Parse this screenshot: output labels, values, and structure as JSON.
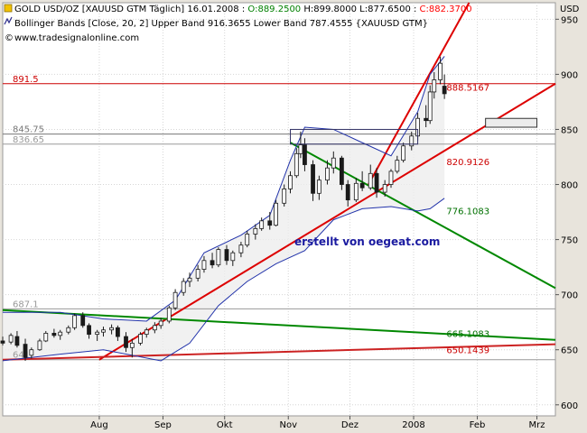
{
  "header": {
    "line1_prefix": "GOLD USD/OZ [XAUUSD GTM",
    "line1_period": "Täglich",
    "line1_date": "16.01.2008",
    "line1_open": "O:889.2500",
    "line1_high": "H:899.8000",
    "line1_low": "L:877.6500",
    "line1_close": "C:882.3700",
    "line2": "Bollinger Bands [Close, 20, 2] Upper Band 916.3655 Lower Band 787.4555 {XAUUSD GTM}",
    "line3": "www.tradesignalonline.com",
    "open_color": "#008000",
    "close_color": "#ff0000"
  },
  "watermark": "erstellt von oegeat.com",
  "chart_data": {
    "type": "candlestick",
    "currency_label": "USD",
    "ylim": [
      590,
      965
    ],
    "yticks": [
      600,
      650,
      700,
      750,
      800,
      850,
      900,
      950
    ],
    "xtick_labels": [
      "Aug",
      "Sep",
      "Okt",
      "Nov",
      "Dez",
      "2008",
      "Feb",
      "Mrz"
    ],
    "grid": true,
    "levels": [
      {
        "label": "891.5",
        "value": 891.5,
        "color": "#cc0000"
      },
      {
        "label": "845.75",
        "value": 845.75,
        "color": "#777777"
      },
      {
        "label": "836.65",
        "value": 836.65,
        "color": "#999999"
      },
      {
        "label": "687.1",
        "value": 687.1,
        "color": "#999999"
      },
      {
        "label": "641",
        "value": 641,
        "color": "#999999"
      }
    ],
    "annotations": [
      {
        "label": "888.5167",
        "color": "#cc0000"
      },
      {
        "label": "820.9126",
        "color": "#cc0000"
      },
      {
        "label": "776.1083",
        "color": "#007000"
      },
      {
        "label": "665.1083",
        "color": "#007000"
      },
      {
        "label": "650.1439",
        "color": "#cc0000"
      }
    ],
    "trendlines": [
      {
        "kind": "support",
        "color": "#dd0000",
        "from": {
          "x": "2007-08-01",
          "y": 641
        },
        "to": {
          "x": "2008-03-10",
          "y": 891.5
        }
      },
      {
        "kind": "support-steep",
        "color": "#dd0000",
        "from": {
          "x": "2007-12-10",
          "y": 800
        },
        "to": {
          "x": "2008-01-28",
          "y": 965
        }
      },
      {
        "kind": "channel",
        "color": "#cc2222",
        "from": {
          "x": "2007-06-15",
          "y": 641
        },
        "to": {
          "x": "2008-03-10",
          "y": 655
        }
      },
      {
        "kind": "resistance",
        "color": "#008800",
        "from": {
          "x": "2007-06-15",
          "y": 686
        },
        "to": {
          "x": "2008-03-10",
          "y": 659
        }
      },
      {
        "kind": "resistance",
        "color": "#008800",
        "from": {
          "x": "2007-11-02",
          "y": 838
        },
        "to": {
          "x": "2008-03-10",
          "y": 706
        }
      }
    ],
    "candles": [
      {
        "d": "2007-06-15",
        "o": 658,
        "h": 662,
        "l": 654,
        "c": 656
      },
      {
        "d": "2007-06-19",
        "o": 657,
        "h": 665,
        "l": 655,
        "c": 663
      },
      {
        "d": "2007-06-22",
        "o": 662,
        "h": 667,
        "l": 652,
        "c": 654
      },
      {
        "d": "2007-06-26",
        "o": 655,
        "h": 660,
        "l": 640,
        "c": 643
      },
      {
        "d": "2007-06-29",
        "o": 645,
        "h": 652,
        "l": 642,
        "c": 650
      },
      {
        "d": "2007-07-03",
        "o": 650,
        "h": 660,
        "l": 649,
        "c": 658
      },
      {
        "d": "2007-07-06",
        "o": 658,
        "h": 667,
        "l": 657,
        "c": 665
      },
      {
        "d": "2007-07-10",
        "o": 665,
        "h": 669,
        "l": 661,
        "c": 663
      },
      {
        "d": "2007-07-13",
        "o": 663,
        "h": 668,
        "l": 659,
        "c": 666
      },
      {
        "d": "2007-07-17",
        "o": 666,
        "h": 672,
        "l": 664,
        "c": 670
      },
      {
        "d": "2007-07-20",
        "o": 670,
        "h": 683,
        "l": 668,
        "c": 681
      },
      {
        "d": "2007-07-24",
        "o": 681,
        "h": 684,
        "l": 670,
        "c": 672
      },
      {
        "d": "2007-07-27",
        "o": 672,
        "h": 674,
        "l": 660,
        "c": 664
      },
      {
        "d": "2007-07-31",
        "o": 664,
        "h": 668,
        "l": 658,
        "c": 666
      },
      {
        "d": "2007-08-03",
        "o": 666,
        "h": 671,
        "l": 662,
        "c": 668
      },
      {
        "d": "2007-08-07",
        "o": 668,
        "h": 673,
        "l": 664,
        "c": 670
      },
      {
        "d": "2007-08-10",
        "o": 670,
        "h": 672,
        "l": 658,
        "c": 662
      },
      {
        "d": "2007-08-14",
        "o": 662,
        "h": 666,
        "l": 648,
        "c": 652
      },
      {
        "d": "2007-08-17",
        "o": 652,
        "h": 660,
        "l": 643,
        "c": 656
      },
      {
        "d": "2007-08-21",
        "o": 656,
        "h": 666,
        "l": 654,
        "c": 664
      },
      {
        "d": "2007-08-24",
        "o": 664,
        "h": 670,
        "l": 661,
        "c": 668
      },
      {
        "d": "2007-08-28",
        "o": 668,
        "h": 675,
        "l": 665,
        "c": 672
      },
      {
        "d": "2007-08-31",
        "o": 672,
        "h": 679,
        "l": 669,
        "c": 676
      },
      {
        "d": "2007-09-04",
        "o": 676,
        "h": 690,
        "l": 674,
        "c": 688
      },
      {
        "d": "2007-09-07",
        "o": 688,
        "h": 705,
        "l": 686,
        "c": 702
      },
      {
        "d": "2007-09-11",
        "o": 702,
        "h": 715,
        "l": 699,
        "c": 712
      },
      {
        "d": "2007-09-14",
        "o": 712,
        "h": 720,
        "l": 707,
        "c": 715
      },
      {
        "d": "2007-09-18",
        "o": 715,
        "h": 727,
        "l": 712,
        "c": 723
      },
      {
        "d": "2007-09-21",
        "o": 723,
        "h": 735,
        "l": 720,
        "c": 731
      },
      {
        "d": "2007-09-25",
        "o": 731,
        "h": 738,
        "l": 724,
        "c": 727
      },
      {
        "d": "2007-09-28",
        "o": 727,
        "h": 743,
        "l": 725,
        "c": 741
      },
      {
        "d": "2007-10-02",
        "o": 741,
        "h": 745,
        "l": 727,
        "c": 731
      },
      {
        "d": "2007-10-05",
        "o": 731,
        "h": 740,
        "l": 726,
        "c": 738
      },
      {
        "d": "2007-10-09",
        "o": 738,
        "h": 748,
        "l": 734,
        "c": 745
      },
      {
        "d": "2007-10-12",
        "o": 745,
        "h": 758,
        "l": 743,
        "c": 755
      },
      {
        "d": "2007-10-16",
        "o": 755,
        "h": 764,
        "l": 750,
        "c": 760
      },
      {
        "d": "2007-10-19",
        "o": 760,
        "h": 770,
        "l": 758,
        "c": 767
      },
      {
        "d": "2007-10-23",
        "o": 767,
        "h": 775,
        "l": 759,
        "c": 763
      },
      {
        "d": "2007-10-26",
        "o": 763,
        "h": 786,
        "l": 762,
        "c": 783
      },
      {
        "d": "2007-10-30",
        "o": 783,
        "h": 800,
        "l": 780,
        "c": 796
      },
      {
        "d": "2007-11-02",
        "o": 796,
        "h": 812,
        "l": 792,
        "c": 808
      },
      {
        "d": "2007-11-05",
        "o": 808,
        "h": 833,
        "l": 806,
        "c": 828
      },
      {
        "d": "2007-11-07",
        "o": 828,
        "h": 848,
        "l": 824,
        "c": 836
      },
      {
        "d": "2007-11-09",
        "o": 836,
        "h": 842,
        "l": 812,
        "c": 818
      },
      {
        "d": "2007-11-13",
        "o": 818,
        "h": 822,
        "l": 785,
        "c": 792
      },
      {
        "d": "2007-11-16",
        "o": 792,
        "h": 808,
        "l": 786,
        "c": 804
      },
      {
        "d": "2007-11-20",
        "o": 804,
        "h": 822,
        "l": 800,
        "c": 815
      },
      {
        "d": "2007-11-23",
        "o": 815,
        "h": 830,
        "l": 810,
        "c": 824
      },
      {
        "d": "2007-11-27",
        "o": 824,
        "h": 826,
        "l": 795,
        "c": 800
      },
      {
        "d": "2007-11-30",
        "o": 800,
        "h": 804,
        "l": 780,
        "c": 786
      },
      {
        "d": "2007-12-04",
        "o": 786,
        "h": 806,
        "l": 784,
        "c": 801
      },
      {
        "d": "2007-12-07",
        "o": 801,
        "h": 812,
        "l": 794,
        "c": 797
      },
      {
        "d": "2007-12-11",
        "o": 797,
        "h": 818,
        "l": 795,
        "c": 810
      },
      {
        "d": "2007-12-14",
        "o": 810,
        "h": 815,
        "l": 788,
        "c": 793
      },
      {
        "d": "2007-12-18",
        "o": 793,
        "h": 804,
        "l": 789,
        "c": 800
      },
      {
        "d": "2007-12-21",
        "o": 800,
        "h": 814,
        "l": 797,
        "c": 812
      },
      {
        "d": "2007-12-24",
        "o": 812,
        "h": 826,
        "l": 810,
        "c": 822
      },
      {
        "d": "2007-12-27",
        "o": 822,
        "h": 838,
        "l": 820,
        "c": 835
      },
      {
        "d": "2007-12-31",
        "o": 835,
        "h": 848,
        "l": 831,
        "c": 844
      },
      {
        "d": "2008-01-03",
        "o": 844,
        "h": 865,
        "l": 840,
        "c": 860
      },
      {
        "d": "2008-01-07",
        "o": 860,
        "h": 872,
        "l": 852,
        "c": 858
      },
      {
        "d": "2008-01-09",
        "o": 858,
        "h": 890,
        "l": 855,
        "c": 884
      },
      {
        "d": "2008-01-11",
        "o": 884,
        "h": 902,
        "l": 878,
        "c": 895
      },
      {
        "d": "2008-01-14",
        "o": 895,
        "h": 916,
        "l": 891,
        "c": 910
      },
      {
        "d": "2008-01-16",
        "o": 889.25,
        "h": 899.8,
        "l": 877.65,
        "c": 882.37
      }
    ],
    "bollinger": {
      "upper": [
        {
          "d": "2007-06-15",
          "v": 684
        },
        {
          "d": "2007-07-13",
          "v": 684
        },
        {
          "d": "2007-08-03",
          "v": 678
        },
        {
          "d": "2007-08-24",
          "v": 676
        },
        {
          "d": "2007-09-07",
          "v": 695
        },
        {
          "d": "2007-09-21",
          "v": 738
        },
        {
          "d": "2007-10-09",
          "v": 754
        },
        {
          "d": "2007-10-23",
          "v": 772
        },
        {
          "d": "2007-11-02",
          "v": 822
        },
        {
          "d": "2007-11-09",
          "v": 852
        },
        {
          "d": "2007-11-23",
          "v": 850
        },
        {
          "d": "2007-12-07",
          "v": 838
        },
        {
          "d": "2007-12-21",
          "v": 826
        },
        {
          "d": "2008-01-03",
          "v": 866
        },
        {
          "d": "2008-01-09",
          "v": 900
        },
        {
          "d": "2008-01-16",
          "v": 916.37
        }
      ],
      "lower": [
        {
          "d": "2007-06-15",
          "v": 640
        },
        {
          "d": "2007-07-13",
          "v": 646
        },
        {
          "d": "2007-08-03",
          "v": 650
        },
        {
          "d": "2007-08-31",
          "v": 640
        },
        {
          "d": "2007-09-14",
          "v": 656
        },
        {
          "d": "2007-09-28",
          "v": 690
        },
        {
          "d": "2007-10-12",
          "v": 712
        },
        {
          "d": "2007-10-26",
          "v": 728
        },
        {
          "d": "2007-11-09",
          "v": 740
        },
        {
          "d": "2007-11-23",
          "v": 768
        },
        {
          "d": "2007-12-07",
          "v": 778
        },
        {
          "d": "2007-12-21",
          "v": 780
        },
        {
          "d": "2008-01-03",
          "v": 776
        },
        {
          "d": "2008-01-09",
          "v": 778
        },
        {
          "d": "2008-01-16",
          "v": 787.46
        }
      ]
    }
  }
}
